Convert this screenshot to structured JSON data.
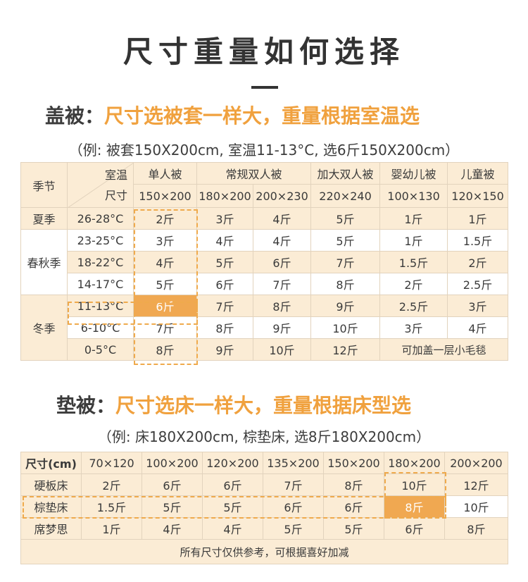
{
  "title": "尺寸重量如何选择",
  "quilt": {
    "heading_prefix": "盖被：",
    "heading_highlight": "尺寸选被套一样大，重量根据室温选",
    "example": "（例: 被套150X200cm, 室温11-13°C, 选6斤150X200cm）",
    "header": {
      "season": "季节",
      "temp": "室温",
      "size": "尺寸",
      "groups": [
        "单人被",
        "常规双人被",
        "加大双人被",
        "婴幼儿被",
        "儿童被"
      ],
      "sizes": [
        "150×200",
        "180×200",
        "200×230",
        "220×240",
        "100×130",
        "120×150"
      ]
    },
    "seasons": [
      "夏季",
      "春秋季",
      "冬季"
    ],
    "rows": [
      {
        "temp": "26-28°C",
        "values": [
          "2斤",
          "3斤",
          "4斤",
          "5斤",
          "1斤",
          "1斤"
        ]
      },
      {
        "temp": "23-25°C",
        "values": [
          "3斤",
          "4斤",
          "4斤",
          "5斤",
          "1斤",
          "1.5斤"
        ]
      },
      {
        "temp": "18-22°C",
        "values": [
          "4斤",
          "5斤",
          "6斤",
          "7斤",
          "1.5斤",
          "2斤"
        ]
      },
      {
        "temp": "14-17°C",
        "values": [
          "5斤",
          "6斤",
          "7斤",
          "8斤",
          "2斤",
          "2.5斤"
        ]
      },
      {
        "temp": "11-13°C",
        "values": [
          "6斤",
          "7斤",
          "8斤",
          "9斤",
          "2.5斤",
          "3斤"
        ]
      },
      {
        "temp": "6-10°C",
        "values": [
          "7斤",
          "8斤",
          "9斤",
          "10斤",
          "3斤",
          "4斤"
        ]
      },
      {
        "temp": "0-5°C",
        "values": [
          "8斤",
          "9斤",
          "10斤",
          "12斤"
        ],
        "note": "可加盖一层小毛毯"
      }
    ]
  },
  "mattress": {
    "heading_prefix": "垫被：",
    "heading_highlight": "尺寸选床一样大，重量根据床型选",
    "example": "（例: 床180X200cm, 棕垫床, 选8斤180X200cm）",
    "header_label": "尺寸(cm)",
    "sizes": [
      "70×120",
      "100×200",
      "120×200",
      "135×200",
      "150×200",
      "180×200",
      "200×200"
    ],
    "rows": [
      {
        "type": "硬板床",
        "values": [
          "2斤",
          "6斤",
          "6斤",
          "7斤",
          "8斤",
          "10斤",
          "12斤"
        ]
      },
      {
        "type": "棕垫床",
        "values": [
          "1.5斤",
          "5斤",
          "5斤",
          "6斤",
          "6斤",
          "8斤",
          "10斤"
        ]
      },
      {
        "type": "席梦思",
        "values": [
          "1斤",
          "4斤",
          "4斤",
          "5斤",
          "5斤",
          "6斤",
          "8斤"
        ]
      }
    ],
    "footnote": "所有尺寸仅供参考，可根据喜好加减"
  }
}
